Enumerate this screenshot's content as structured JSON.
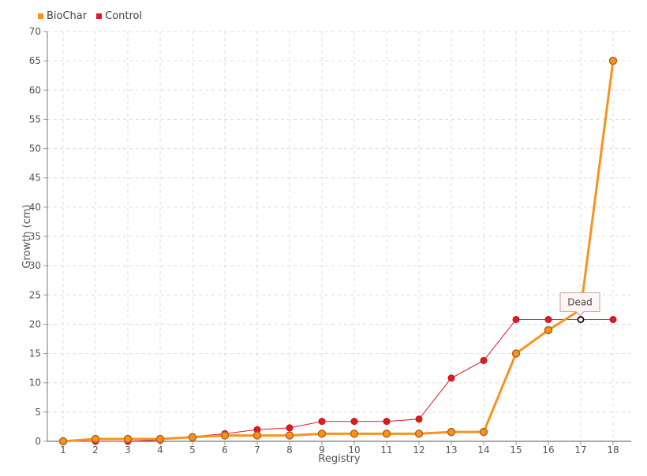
{
  "chart_data": {
    "type": "line",
    "title": "",
    "xlabel": "Registry",
    "ylabel": "Growth (cm)",
    "categories": [
      "1",
      "2",
      "3",
      "4",
      "5",
      "6",
      "7",
      "8",
      "9",
      "10",
      "11",
      "12",
      "13",
      "14",
      "15",
      "16",
      "17",
      "18"
    ],
    "ylim": [
      0,
      70
    ],
    "yticks": [
      0,
      5,
      10,
      15,
      20,
      25,
      30,
      35,
      40,
      45,
      50,
      55,
      60,
      65,
      70
    ],
    "grid": true,
    "legend": "top-left",
    "series": [
      {
        "name": "BioChar",
        "color": "#f7931e",
        "values": [
          0,
          0.4,
          0.4,
          0.4,
          0.7,
          1.0,
          1.0,
          1.0,
          1.3,
          1.3,
          1.3,
          1.3,
          1.6,
          1.6,
          15.0,
          19.0,
          22.5,
          65.0
        ]
      },
      {
        "name": "Control",
        "color": "#e01a25",
        "values": [
          0,
          0,
          0,
          0.2,
          0.8,
          1.3,
          2.0,
          2.3,
          3.4,
          3.4,
          3.4,
          3.8,
          10.8,
          13.8,
          20.8,
          20.8,
          20.8,
          20.8
        ]
      }
    ],
    "annotations": [
      {
        "text": "Dead",
        "series": "Control",
        "category": "17",
        "value": 20.8
      }
    ]
  }
}
